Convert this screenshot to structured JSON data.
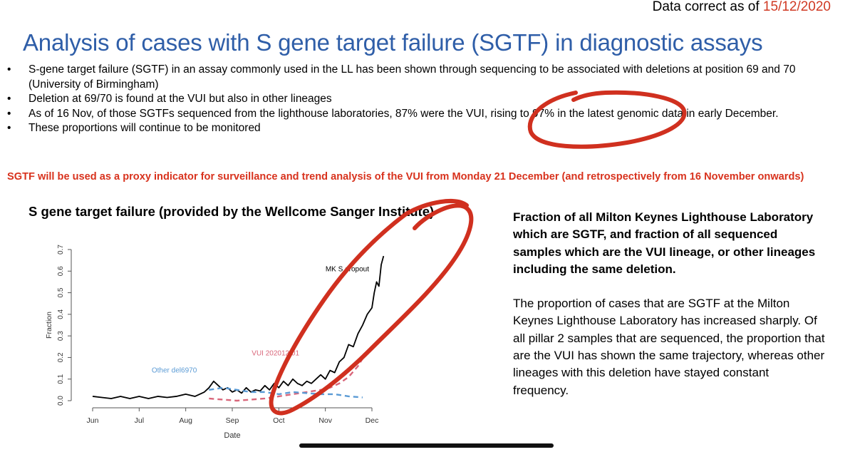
{
  "header": {
    "data_correct_label": "Data correct as of",
    "data_correct_date": "15/12/2020"
  },
  "title": "Analysis of cases with S gene target failure (SGTF) in diagnostic assays",
  "bullets": [
    "S-gene target failure (SGTF) in an assay commonly used in the LL has been shown through sequencing to be associated with deletions at position 69 and 70 (University of Birmingham)",
    "Deletion at 69/70 is found at the VUI but also in other lineages",
    "As of 16 Nov, of those SGTFs sequenced from the lighthouse laboratories, 87% were the VUI, rising to 97% in the latest genomic data in early December.",
    "These proportions will continue to be monitored"
  ],
  "proxy_statement": "SGTF will be used as a proxy indicator for surveillance and trend analysis of the VUI from Monday 21 December (and retrospectively from 16 November onwards)",
  "chart_title": "S gene target failure (provided by the Wellcome Sanger Institute)",
  "right_panel": {
    "heading": "Fraction of all Milton Keynes Lighthouse Laboratory which are SGTF, and fraction of all sequenced samples which are the VUI lineage, or other lineages including the same deletion.",
    "body": "The proportion of cases that are SGTF at the Milton Keynes Lighthouse Laboratory has increased sharply. Of all pillar 2 samples that are sequenced, the proportion that are the VUI has shown the same trajectory, whereas other lineages with this deletion have stayed constant frequency."
  },
  "colors": {
    "title_blue": "#2f5ea8",
    "red_text": "#d8321d",
    "annotation_red": "#d0301f",
    "mk_line": "#000000",
    "vui_line": "#d9667a",
    "other_line": "#5b9bd5"
  },
  "chart_data": {
    "type": "line",
    "xlabel": "Date",
    "ylabel": "Fraction",
    "x_ticks": [
      "Jun",
      "Jul",
      "Aug",
      "Sep",
      "Oct",
      "Nov",
      "Dec"
    ],
    "y_ticks": [
      "0.0",
      "0.1",
      "0.2",
      "0.3",
      "0.4",
      "0.5",
      "0.6",
      "0.7"
    ],
    "ylim": [
      0,
      0.7
    ],
    "x_range": [
      0,
      6.35
    ],
    "series": [
      {
        "name": "MK S dropout",
        "style": "solid",
        "color": "#000000",
        "x": [
          0.0,
          0.2,
          0.4,
          0.6,
          0.8,
          1.0,
          1.2,
          1.4,
          1.6,
          1.8,
          2.0,
          2.2,
          2.4,
          2.5,
          2.6,
          2.7,
          2.8,
          2.9,
          3.0,
          3.1,
          3.2,
          3.3,
          3.4,
          3.5,
          3.6,
          3.7,
          3.8,
          3.9,
          4.0,
          4.1,
          4.2,
          4.3,
          4.4,
          4.5,
          4.6,
          4.7,
          4.8,
          4.9,
          5.0,
          5.1,
          5.2,
          5.3,
          5.4,
          5.5,
          5.6,
          5.7,
          5.8,
          5.9,
          6.0,
          6.05,
          6.1,
          6.15,
          6.2,
          6.25
        ],
        "y": [
          0.02,
          0.015,
          0.01,
          0.02,
          0.01,
          0.02,
          0.01,
          0.02,
          0.015,
          0.02,
          0.03,
          0.02,
          0.04,
          0.06,
          0.09,
          0.07,
          0.05,
          0.06,
          0.04,
          0.05,
          0.035,
          0.06,
          0.04,
          0.05,
          0.045,
          0.07,
          0.05,
          0.08,
          0.06,
          0.09,
          0.07,
          0.1,
          0.08,
          0.07,
          0.09,
          0.08,
          0.1,
          0.12,
          0.1,
          0.14,
          0.13,
          0.18,
          0.2,
          0.26,
          0.25,
          0.31,
          0.35,
          0.4,
          0.43,
          0.5,
          0.55,
          0.53,
          0.63,
          0.67
        ]
      },
      {
        "name": "VUI 202012/01",
        "style": "dashed",
        "color": "#d9667a",
        "x": [
          2.5,
          2.8,
          3.1,
          3.4,
          3.7,
          4.0,
          4.3,
          4.6,
          4.9,
          5.1,
          5.3,
          5.5,
          5.7,
          5.9
        ],
        "y": [
          0.01,
          0.005,
          0.0,
          0.005,
          0.01,
          0.02,
          0.03,
          0.04,
          0.05,
          0.06,
          0.08,
          0.11,
          0.16,
          0.23
        ]
      },
      {
        "name": "Other del6970",
        "style": "dashed",
        "color": "#5b9bd5",
        "x": [
          2.5,
          2.8,
          3.1,
          3.4,
          3.7,
          4.0,
          4.3,
          4.6,
          4.9,
          5.2,
          5.5,
          5.8
        ],
        "y": [
          0.05,
          0.06,
          0.05,
          0.04,
          0.04,
          0.03,
          0.04,
          0.035,
          0.03,
          0.03,
          0.02,
          0.015
        ]
      }
    ]
  }
}
